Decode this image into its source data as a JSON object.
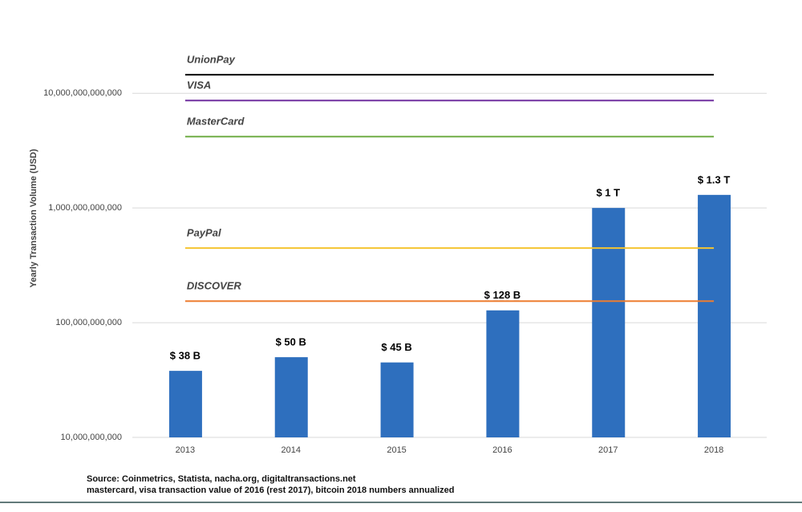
{
  "chart_data": {
    "type": "bar",
    "y_label": "Yearly Transaction Volume (USD)",
    "categories": [
      "2013",
      "2014",
      "2015",
      "2016",
      "2017",
      "2018"
    ],
    "values": [
      38000000000,
      50000000000,
      45000000000,
      128000000000,
      1000000000000,
      1300000000000
    ],
    "value_labels": [
      "$ 38 B",
      "$ 50 B",
      "$ 45 B",
      "$ 128 B",
      "$ 1 T",
      "$ 1.3 T"
    ],
    "color": "#2e6fbe",
    "log": true,
    "grid": true,
    "ylim": [
      10000000000,
      30000000000000
    ],
    "yticks": [
      {
        "value": 10000000000,
        "label": "10,000,000,000"
      },
      {
        "value": 100000000000,
        "label": "100,000,000,000"
      },
      {
        "value": 1000000000000,
        "label": "1,000,000,000,000"
      },
      {
        "value": 10000000000000,
        "label": "10,000,000,000,000"
      }
    ],
    "reference_lines": [
      {
        "name": "UnionPay",
        "color": "#000000",
        "value": 14500000000000
      },
      {
        "name": "VISA",
        "color": "#7030a0",
        "value": 8650000000000
      },
      {
        "name": "MasterCard",
        "color": "#70ad47",
        "value": 4190000000000
      },
      {
        "name": "PayPal",
        "color": "#f4c430",
        "value": 447000000000
      },
      {
        "name": "DISCOVER",
        "color": "#ed7d31",
        "value": 154000000000
      }
    ],
    "notes": [
      "Source: Coinmetrics, Statista, nacha.org, digitaltransactions.net",
      "mastercard, visa transaction value of 2016 (rest 2017), bitcoin 2018 numbers annualized"
    ]
  }
}
